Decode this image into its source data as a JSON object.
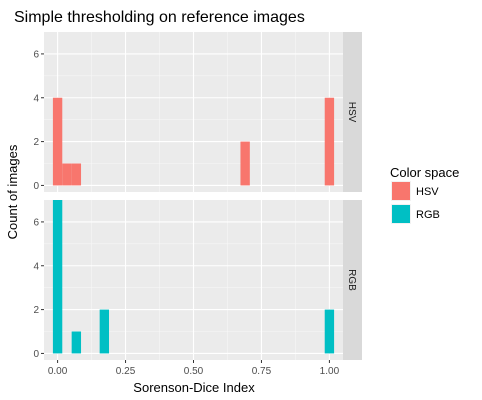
{
  "chart_data": {
    "type": "bar",
    "title": "Simple thresholding on reference images",
    "xlabel": "Sorenson-Dice Index",
    "ylabel": "Count of images",
    "xlim": [
      -0.05,
      1.05
    ],
    "x_ticks": [
      0,
      0.25,
      0.5,
      0.75,
      1
    ],
    "x_tick_labels": [
      "0.00",
      "0.25",
      "0.50",
      "0.75",
      "1.00"
    ],
    "ylim": [
      -0.3,
      7.0
    ],
    "y_ticks": [
      0,
      2,
      4,
      6
    ],
    "y_tick_labels": [
      "0",
      "2",
      "4",
      "6"
    ],
    "bin_width": 0.0345,
    "grid": true,
    "legend": {
      "title": "Color space",
      "placement": "right",
      "entries": [
        {
          "label": "HSV",
          "color": "#F8766D"
        },
        {
          "label": "RGB",
          "color": "#00BFC4"
        }
      ]
    },
    "panels": [
      {
        "strip": "HSV",
        "color": "#F8766D",
        "bins": [
          {
            "x": 0.0,
            "count": 4
          },
          {
            "x": 0.0345,
            "count": 1
          },
          {
            "x": 0.069,
            "count": 1
          },
          {
            "x": 0.69,
            "count": 2
          },
          {
            "x": 1.0,
            "count": 4
          }
        ]
      },
      {
        "strip": "RGB",
        "color": "#00BFC4",
        "bins": [
          {
            "x": 0.0,
            "count": 7
          },
          {
            "x": 0.069,
            "count": 1
          },
          {
            "x": 0.172,
            "count": 2
          },
          {
            "x": 1.0,
            "count": 2
          }
        ]
      }
    ]
  }
}
